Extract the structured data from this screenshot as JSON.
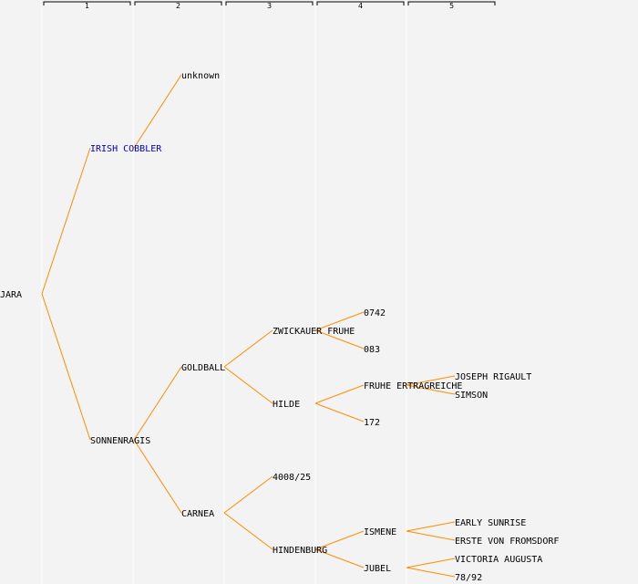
{
  "colors": {
    "background": "#f3f3f3",
    "column_divider": "#ffffff",
    "edge": "#ff8c00",
    "label": "#000000",
    "label_link": "#0000cc",
    "header_line": "#000000"
  },
  "generations": [
    "1",
    "2",
    "3",
    "4",
    "5"
  ],
  "nodes": [
    {
      "id": "jara",
      "label": "JARA",
      "gen": 0
    },
    {
      "id": "irish-cobbler",
      "label": "IRISH COBBLER",
      "gen": 1,
      "parent": "jara",
      "link": true
    },
    {
      "id": "sonnenragis",
      "label": "SONNENRAGIS",
      "gen": 1,
      "parent": "jara"
    },
    {
      "id": "unknown",
      "label": "unknown",
      "gen": 2,
      "parent": "irish-cobbler"
    },
    {
      "id": "goldball",
      "label": "GOLDBALL",
      "gen": 2,
      "parent": "sonnenragis"
    },
    {
      "id": "carnea",
      "label": "CARNEA",
      "gen": 2,
      "parent": "sonnenragis"
    },
    {
      "id": "zwickauer-fruhe",
      "label": "ZWICKAUER FRUHE",
      "gen": 3,
      "parent": "goldball"
    },
    {
      "id": "hilde",
      "label": "HILDE",
      "gen": 3,
      "parent": "goldball"
    },
    {
      "id": "4008-25",
      "label": "4008/25",
      "gen": 3,
      "parent": "carnea"
    },
    {
      "id": "hindenburg",
      "label": "HINDENBURG",
      "gen": 3,
      "parent": "carnea"
    },
    {
      "id": "0742",
      "label": "0742",
      "gen": 4,
      "parent": "zwickauer-fruhe"
    },
    {
      "id": "083",
      "label": "083",
      "gen": 4,
      "parent": "zwickauer-fruhe"
    },
    {
      "id": "fruhe-ertragreiche",
      "label": "FRUHE ERTRAGREICHE",
      "gen": 4,
      "parent": "hilde"
    },
    {
      "id": "172",
      "label": "172",
      "gen": 4,
      "parent": "hilde"
    },
    {
      "id": "ismene",
      "label": "ISMENE",
      "gen": 4,
      "parent": "hindenburg"
    },
    {
      "id": "jubel",
      "label": "JUBEL",
      "gen": 4,
      "parent": "hindenburg"
    },
    {
      "id": "joseph-rigault",
      "label": "JOSEPH RIGAULT",
      "gen": 5,
      "parent": "fruhe-ertragreiche"
    },
    {
      "id": "simson",
      "label": "SIMSON",
      "gen": 5,
      "parent": "fruhe-ertragreiche"
    },
    {
      "id": "early-sunrise",
      "label": "EARLY SUNRISE",
      "gen": 5,
      "parent": "ismene"
    },
    {
      "id": "erste-von-fromsdorf",
      "label": "ERSTE VON FROMSDORF",
      "gen": 5,
      "parent": "ismene"
    },
    {
      "id": "victoria-augusta",
      "label": "VICTORIA AUGUSTA",
      "gen": 5,
      "parent": "jubel"
    },
    {
      "id": "78-92",
      "label": "78/92",
      "gen": 5,
      "parent": "jubel"
    }
  ]
}
